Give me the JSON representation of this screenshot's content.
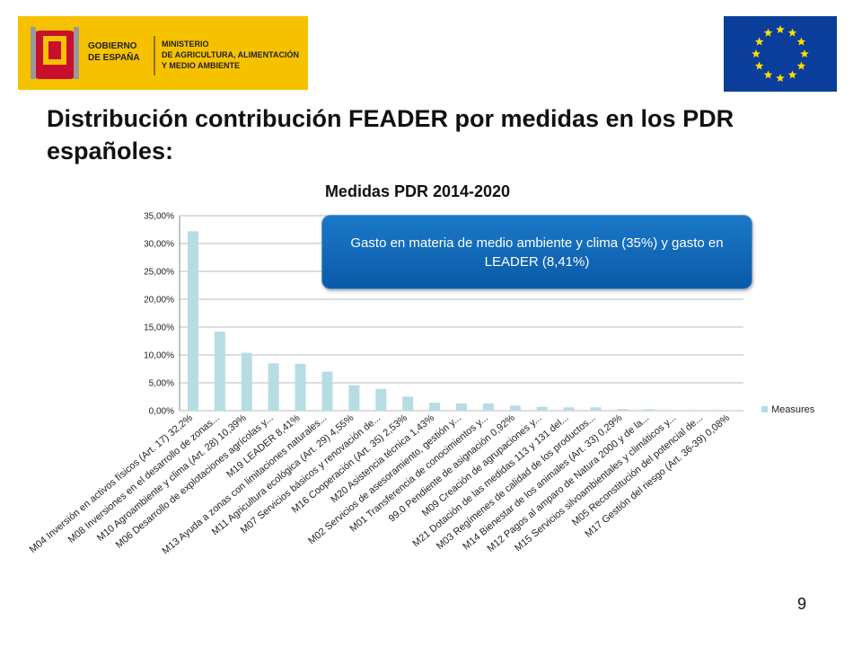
{
  "header": {
    "gov_line1": "GOBIERNO",
    "gov_line2": "DE ESPAÑA",
    "ministry_line1": "MINISTERIO",
    "ministry_line2": "DE AGRICULTURA, ALIMENTACIÓN",
    "ministry_line3": "Y MEDIO AMBIENTE"
  },
  "slide_title": "Distribución contribución FEADER por medidas en los PDR españoles:",
  "callout": "Gasto en materia de medio ambiente y clima (35%) y gasto en LEADER (8,41%)",
  "page_number": "9",
  "chart_data": {
    "type": "bar",
    "title": "Medidas PDR 2014-2020",
    "categories": [
      "M04 Inversión en activos físicos (Art. 17) 32,2%",
      "M08 Inversiones en el desarrollo de zonas...",
      "M10 Agroambiente y clima (Art. 28) 10,39%",
      "M06 Desarrollo de explotaciones agrícolas y...",
      "M19 LEADER 8,41%",
      "M13 Ayuda a zonas con limitaciones naturales...",
      "M11 Agricultura ecológica (Art. 29) 4,55%",
      "M07 Servicios básicos y renovación de...",
      "M16 Cooperación (Art. 35) 2,53%",
      "M20 Asistencia técnica 1,43%",
      "M02 Servicios de asesoramiento, gestión y...",
      "M01 Transferencia de conocimientos y...",
      "99.0 Pendiente de asignación 0,92%",
      "M09 Creación de agrupaciones y...",
      "M21 Dotación de las medidas 113 y 131 del...",
      "M03 Regímenes de calidad de los productos...",
      "M14 Bienestar de los animales (Art. 33) 0,29%",
      "M12 Pagos al amparo de Natura 2000 y de la...",
      "M15 Servicios silvoambientales y climáticos y...",
      "M05 Reconstitución del potencial de...",
      "M17 Gestión del riesgo (Art. 36-39) 0,08%"
    ],
    "series": [
      {
        "name": "Measures",
        "color": "#b6dde4",
        "values": [
          32.2,
          14.2,
          10.39,
          8.5,
          8.41,
          7.0,
          4.55,
          3.9,
          2.53,
          1.43,
          1.3,
          1.3,
          0.92,
          0.7,
          0.6,
          0.6,
          0.29,
          0.25,
          0.1,
          0.1,
          0.08
        ]
      }
    ],
    "ylim": [
      0,
      35
    ],
    "yticks": [
      {
        "value": 0,
        "label": "0,00%"
      },
      {
        "value": 5,
        "label": "5,00%"
      },
      {
        "value": 10,
        "label": "10,00%"
      },
      {
        "value": 15,
        "label": "15,00%"
      },
      {
        "value": 20,
        "label": "20,00%"
      },
      {
        "value": 25,
        "label": "25,00%"
      },
      {
        "value": 30,
        "label": "30,00%"
      },
      {
        "value": 35,
        "label": "35,00%"
      }
    ],
    "grid": true,
    "legend": "right"
  }
}
